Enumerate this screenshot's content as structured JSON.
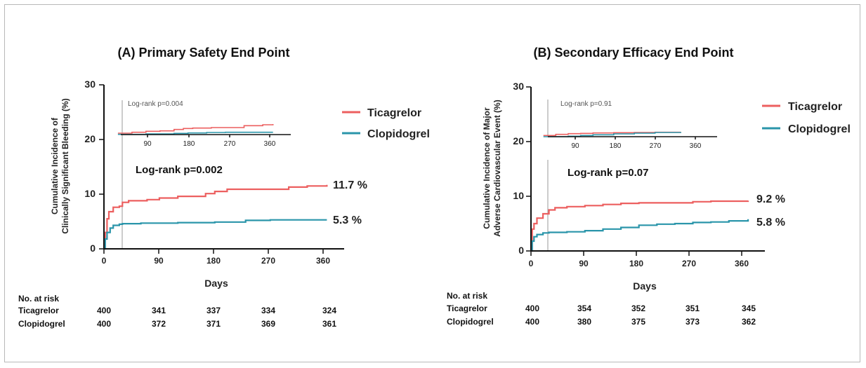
{
  "chart_data": [
    {
      "type": "line",
      "title": "(A) Primary Safety End Point",
      "ylabel_lines": [
        "Cumulative Incidence of",
        "Clinically Significant Bleeding (%)"
      ],
      "xlabel": "Days",
      "xlim": [
        0,
        390
      ],
      "ylim": [
        0,
        30
      ],
      "xticks": [
        "0",
        "90",
        "180",
        "270",
        "360"
      ],
      "yticks": [
        "0",
        "10",
        "20",
        "30"
      ],
      "logrank_main": "Log-rank p=0.002",
      "logrank_inset": "Log-rank p=0.004",
      "landmark_day": 30,
      "legend": [
        "Ticagrelor",
        "Clopidogrel"
      ],
      "end_labels": [
        "11.7 %",
        "5.3 %"
      ],
      "series": [
        {
          "name": "Ticagrelor",
          "color": "#ec5f5f",
          "x": [
            0,
            2,
            5,
            8,
            15,
            25,
            30,
            40,
            70,
            90,
            120,
            150,
            165,
            180,
            200,
            240,
            300,
            330,
            362
          ],
          "y": [
            0,
            3,
            5.5,
            6.8,
            7.6,
            7.8,
            8.5,
            8.8,
            9.0,
            9.3,
            9.6,
            9.6,
            10.1,
            10.5,
            10.9,
            10.9,
            11.3,
            11.5,
            11.7
          ]
        },
        {
          "name": "Clopidogrel",
          "color": "#2a95aa",
          "x": [
            0,
            2,
            5,
            10,
            15,
            25,
            30,
            60,
            120,
            180,
            230,
            270,
            362
          ],
          "y": [
            0,
            1.8,
            3,
            3.8,
            4.3,
            4.5,
            4.6,
            4.7,
            4.8,
            4.9,
            5.2,
            5.3,
            5.3
          ]
        }
      ],
      "inset": {
        "xticks": [
          "90",
          "180",
          "270",
          "360"
        ],
        "xlim": [
          0,
          400
        ],
        "ylim": [
          0,
          9
        ],
        "series": [
          {
            "name": "Ticagrelor",
            "color": "#ec5f5f",
            "x": [
              30,
              60,
              90,
              120,
              150,
              170,
              190,
              230,
              260,
              300,
              340,
              362
            ],
            "y": [
              0.6,
              1.0,
              1.4,
              1.6,
              2.2,
              2.6,
              2.8,
              3.0,
              3.0,
              3.8,
              4.2,
              4.5
            ]
          },
          {
            "name": "Clopidogrel",
            "color": "#2a95aa",
            "x": [
              30,
              90,
              150,
              180,
              220,
              260,
              300,
              362
            ],
            "y": [
              0.1,
              0.3,
              0.5,
              0.7,
              0.9,
              1.0,
              1.0,
              1.0
            ]
          }
        ]
      },
      "risk_table": {
        "header": "No. at risk",
        "rows": [
          {
            "label": "Ticagrelor",
            "values": [
              "400",
              "341",
              "337",
              "334",
              "324"
            ]
          },
          {
            "label": "Clopidogrel",
            "values": [
              "400",
              "372",
              "371",
              "369",
              "361"
            ]
          }
        ]
      }
    },
    {
      "type": "line",
      "title": "(B) Secondary Efficacy End Point",
      "ylabel_lines": [
        "Cumulative Incidence of Major",
        "Adverse Cardiovascular Event (%)"
      ],
      "xlabel": "Days",
      "xlim": [
        0,
        390
      ],
      "ylim": [
        0,
        30
      ],
      "xticks": [
        "0",
        "90",
        "180",
        "270",
        "360"
      ],
      "yticks": [
        "0",
        "10",
        "20",
        "30"
      ],
      "logrank_main": "Log-rank p=0.07",
      "logrank_inset": "Log-rank p=0.91",
      "landmark_day": 30,
      "legend": [
        "Ticagrelor",
        "Clopidogrel"
      ],
      "end_labels": [
        "9.2 %",
        "5.8 %"
      ],
      "series": [
        {
          "name": "Ticagrelor",
          "color": "#ec5f5f",
          "x": [
            0,
            2,
            5,
            10,
            20,
            30,
            40,
            60,
            90,
            120,
            150,
            180,
            240,
            270,
            300,
            362
          ],
          "y": [
            0,
            4,
            5,
            6,
            6.8,
            7.5,
            7.9,
            8.1,
            8.3,
            8.5,
            8.7,
            8.8,
            8.8,
            9.0,
            9.1,
            9.2
          ]
        },
        {
          "name": "Clopidogrel",
          "color": "#2a95aa",
          "x": [
            0,
            2,
            5,
            10,
            20,
            30,
            60,
            90,
            120,
            150,
            180,
            210,
            240,
            270,
            300,
            330,
            362
          ],
          "y": [
            0,
            1.8,
            2.6,
            3.0,
            3.3,
            3.4,
            3.5,
            3.7,
            4.0,
            4.3,
            4.7,
            4.9,
            5.0,
            5.2,
            5.3,
            5.5,
            5.8
          ]
        }
      ],
      "inset": {
        "xticks": [
          "90",
          "180",
          "270",
          "360"
        ],
        "xlim": [
          0,
          450
        ],
        "ylim": [
          0,
          9
        ],
        "series": [
          {
            "name": "Ticagrelor",
            "color": "#ec5f5f",
            "x": [
              30,
              60,
              90,
              120,
              150,
              200,
              250,
              300,
              362
            ],
            "y": [
              0.5,
              1.0,
              1.3,
              1.4,
              1.6,
              1.7,
              1.8,
              1.9,
              2.0
            ]
          },
          {
            "name": "Clopidogrel",
            "color": "#2a95aa",
            "x": [
              30,
              90,
              120,
              150,
              200,
              250,
              300,
              362
            ],
            "y": [
              0.0,
              0.2,
              0.5,
              0.8,
              1.2,
              1.5,
              1.8,
              2.0
            ]
          }
        ]
      },
      "risk_table": {
        "header": "No. at risk",
        "rows": [
          {
            "label": "Ticagrelor",
            "values": [
              "400",
              "354",
              "352",
              "351",
              "345"
            ]
          },
          {
            "label": "Clopidogrel",
            "values": [
              "400",
              "380",
              "375",
              "373",
              "362"
            ]
          }
        ]
      }
    }
  ]
}
